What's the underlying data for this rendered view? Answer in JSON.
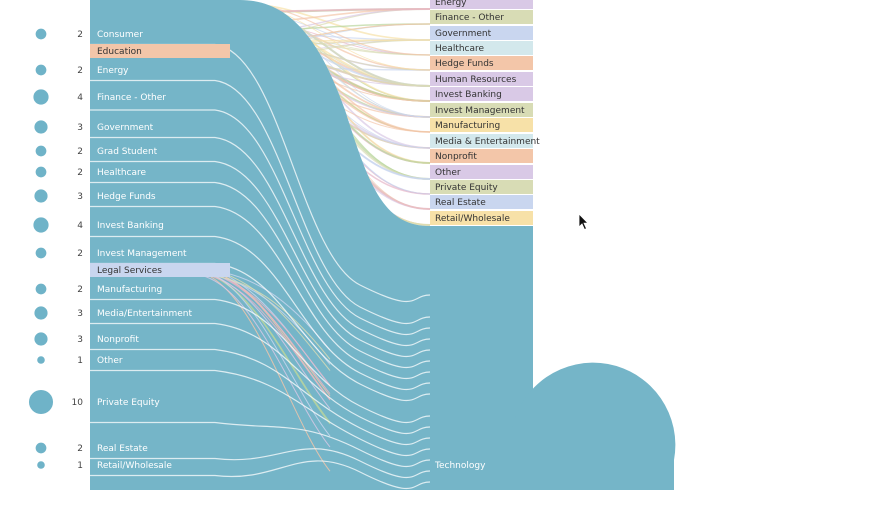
{
  "colors": {
    "main": "#75b5c8",
    "divider": "#ffffff",
    "dot": "#6fb3c8",
    "label_light": "#ffffff",
    "label_dark": "#333333"
  },
  "cursor_icon": "arrow-pointer-icon",
  "chart_data": {
    "type": "sankey",
    "title": "",
    "left_nodes": [
      {
        "label": "Consumer",
        "count": "2",
        "style": "flow"
      },
      {
        "label": "Education",
        "count": "",
        "style": "tag",
        "color": "#f3c6a9"
      },
      {
        "label": "Energy",
        "count": "2",
        "style": "flow"
      },
      {
        "label": "Finance - Other",
        "count": "4",
        "style": "flow"
      },
      {
        "label": "Government",
        "count": "3",
        "style": "flow"
      },
      {
        "label": "Grad Student",
        "count": "2",
        "style": "flow"
      },
      {
        "label": "Healthcare",
        "count": "2",
        "style": "flow"
      },
      {
        "label": "Hedge Funds",
        "count": "3",
        "style": "flow"
      },
      {
        "label": "Invest Banking",
        "count": "4",
        "style": "flow"
      },
      {
        "label": "Invest Management",
        "count": "2",
        "style": "flow"
      },
      {
        "label": "Legal Services",
        "count": "",
        "style": "tag",
        "color": "#c9d6ef"
      },
      {
        "label": "Manufacturing",
        "count": "2",
        "style": "flow"
      },
      {
        "label": "Media/Entertainment",
        "count": "3",
        "style": "flow"
      },
      {
        "label": "Nonprofit",
        "count": "3",
        "style": "flow"
      },
      {
        "label": "Other",
        "count": "1",
        "style": "flow"
      },
      {
        "label": "Private Equity",
        "count": "10",
        "style": "flow"
      },
      {
        "label": "Real Estate",
        "count": "2",
        "style": "flow"
      },
      {
        "label": "Retail/Wholesale",
        "count": "1",
        "style": "flow"
      }
    ],
    "right_nodes": [
      {
        "label": "Energy",
        "color": "#d9c9e6"
      },
      {
        "label": "Finance - Other",
        "color": "#d8dcb5"
      },
      {
        "label": "Government",
        "color": "#c9d6ef"
      },
      {
        "label": "Healthcare",
        "color": "#d3e8ec"
      },
      {
        "label": "Hedge Funds",
        "color": "#f3c6a9"
      },
      {
        "label": "Human Resources",
        "color": "#d9c9e6"
      },
      {
        "label": "Invest Banking",
        "color": "#d9c9e6"
      },
      {
        "label": "Invest Management",
        "color": "#d8dcb5"
      },
      {
        "label": "Manufacturing",
        "color": "#f7e1a8"
      },
      {
        "label": "Media & Entertainment",
        "color": "#d3e8ec"
      },
      {
        "label": "Nonprofit",
        "color": "#f3c6a9"
      },
      {
        "label": "Other",
        "color": "#d9c9e6"
      },
      {
        "label": "Private Equity",
        "color": "#d8dcb5"
      },
      {
        "label": "Real Estate",
        "color": "#c9d6ef"
      },
      {
        "label": "Retail/Wholesale",
        "color": "#f7e1a8"
      }
    ],
    "target": {
      "label": "Technology"
    }
  }
}
